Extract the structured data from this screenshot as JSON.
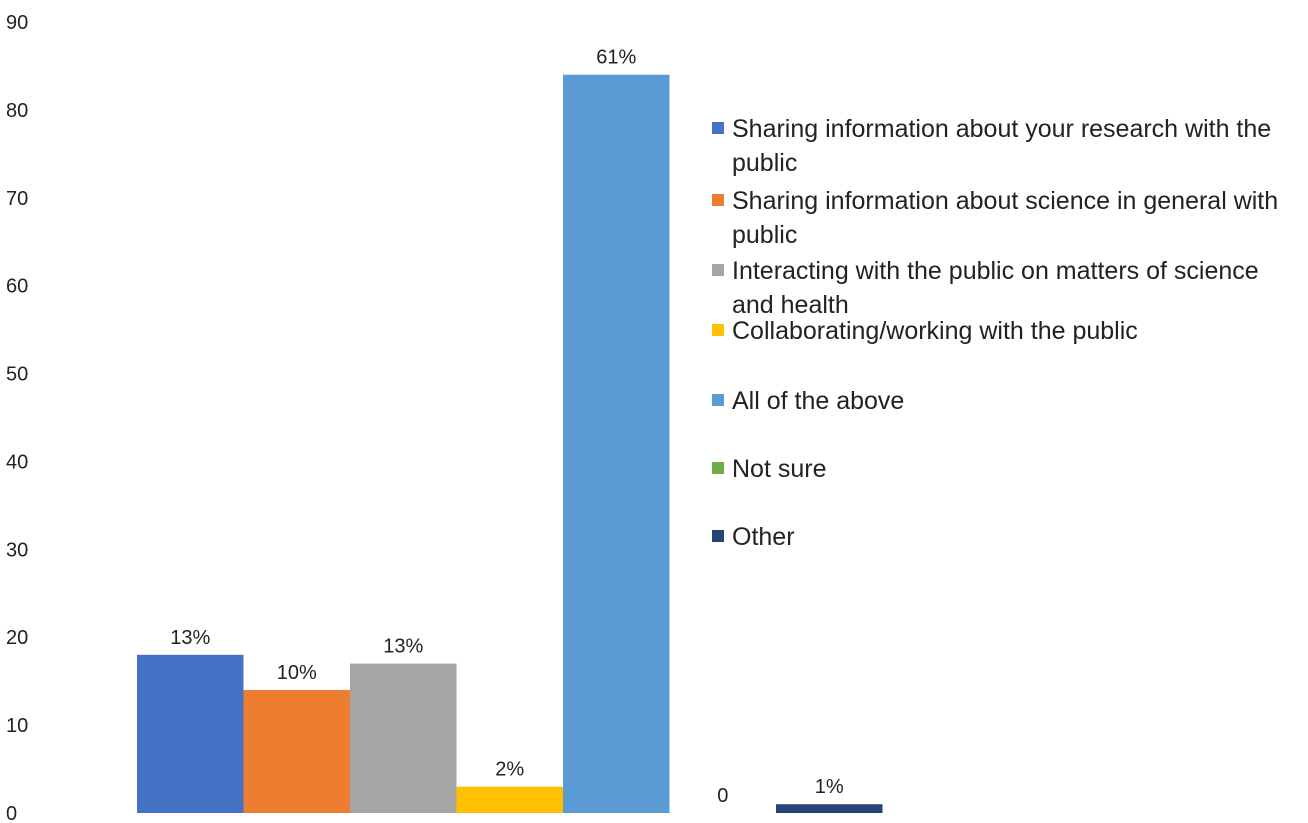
{
  "chart_data": {
    "type": "bar",
    "title": "",
    "xlabel": "",
    "ylabel": "",
    "ylim": [
      0,
      90
    ],
    "yticks": [
      "0",
      "10",
      "20",
      "30",
      "40",
      "50",
      "60",
      "70",
      "80",
      "90"
    ],
    "grid": false,
    "legend_position": "right",
    "series": [
      {
        "name": "Sharing information about your research with the public",
        "value": 18,
        "label": "13%",
        "color": "#4472C4"
      },
      {
        "name": "Sharing information about science in general with public",
        "value": 14,
        "label": "10%",
        "color": "#ED7D31"
      },
      {
        "name": "Interacting with the public on matters of science and health",
        "value": 17,
        "label": "13%",
        "color": "#A5A5A5"
      },
      {
        "name": "Collaborating/working with the public",
        "value": 3,
        "label": "2%",
        "color": "#FFC000"
      },
      {
        "name": "All of the above",
        "value": 84,
        "label": "61%",
        "color": "#5B9BD5"
      },
      {
        "name": "Not sure",
        "value": 0,
        "label": "0",
        "color": "#70AD47"
      },
      {
        "name": "Other",
        "value": 1,
        "label": "1%",
        "color": "#264478"
      }
    ]
  }
}
